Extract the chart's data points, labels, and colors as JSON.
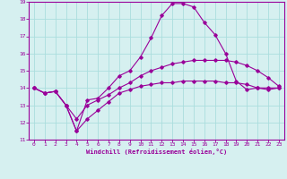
{
  "xlabel": "Windchill (Refroidissement éolien,°C)",
  "background_color": "#d6f0f0",
  "line_color": "#990099",
  "grid_color": "#aadddd",
  "xlim": [
    -0.5,
    23.5
  ],
  "ylim": [
    11,
    19
  ],
  "xticks": [
    0,
    1,
    2,
    3,
    4,
    5,
    6,
    7,
    8,
    9,
    10,
    11,
    12,
    13,
    14,
    15,
    16,
    17,
    18,
    19,
    20,
    21,
    22,
    23
  ],
  "yticks": [
    11,
    12,
    13,
    14,
    15,
    16,
    17,
    18,
    19
  ],
  "series": {
    "line1_x": [
      0,
      1,
      2,
      3,
      4,
      5,
      6,
      7,
      8,
      9,
      10,
      11,
      12,
      13,
      14,
      15,
      16,
      17,
      18,
      19,
      20,
      21,
      22,
      23
    ],
    "line1_y": [
      14.0,
      13.7,
      13.8,
      13.0,
      11.5,
      13.3,
      13.4,
      14.0,
      14.7,
      15.0,
      15.8,
      16.9,
      18.2,
      18.9,
      18.9,
      18.7,
      17.8,
      17.1,
      16.0,
      14.4,
      13.9,
      14.0,
      14.0,
      14.0
    ],
    "line2_x": [
      0,
      1,
      2,
      3,
      4,
      5,
      6,
      7,
      8,
      9,
      10,
      11,
      12,
      13,
      14,
      15,
      16,
      17,
      18,
      19,
      20,
      21,
      22,
      23
    ],
    "line2_y": [
      14.0,
      13.7,
      13.8,
      13.0,
      12.2,
      13.0,
      13.3,
      13.6,
      14.0,
      14.3,
      14.7,
      15.0,
      15.2,
      15.4,
      15.5,
      15.6,
      15.6,
      15.6,
      15.6,
      15.5,
      15.3,
      15.0,
      14.6,
      14.1
    ],
    "line3_x": [
      0,
      1,
      2,
      3,
      4,
      5,
      6,
      7,
      8,
      9,
      10,
      11,
      12,
      13,
      14,
      15,
      16,
      17,
      18,
      19,
      20,
      21,
      22,
      23
    ],
    "line3_y": [
      14.0,
      13.7,
      13.8,
      13.0,
      11.5,
      12.2,
      12.7,
      13.2,
      13.7,
      13.9,
      14.1,
      14.2,
      14.3,
      14.3,
      14.4,
      14.4,
      14.4,
      14.4,
      14.3,
      14.3,
      14.2,
      14.0,
      13.9,
      14.0
    ]
  }
}
